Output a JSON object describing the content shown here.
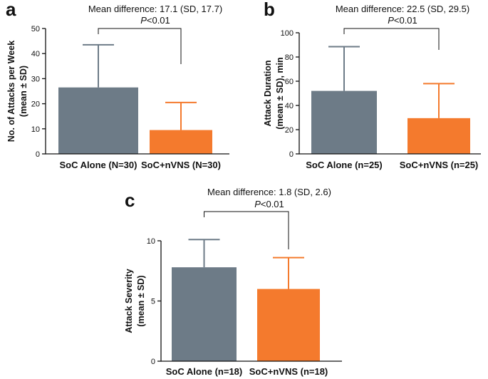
{
  "chart_data": [
    {
      "panel": "a",
      "type": "bar",
      "title": "Mean difference: 17.1 (SD, 17.7)",
      "p_prefix": "P",
      "p_suffix": "<0.01",
      "ylabel": "No. of Attacks per Week",
      "ylabel2": "(mean ± SD)",
      "ylim": [
        0,
        50
      ],
      "yticks": [
        0,
        10,
        20,
        30,
        40,
        50
      ],
      "categories": [
        "SoC Alone (N=30)",
        "SoC+nVNS (N=30)"
      ],
      "values": [
        26.5,
        9.5
      ],
      "errors": [
        17.0,
        11.0
      ],
      "colors": [
        "#6d7b87",
        "#f47a2d"
      ],
      "error_colors": [
        "#6d7b87",
        "#f47a2d"
      ]
    },
    {
      "panel": "b",
      "type": "bar",
      "title": "Mean difference: 22.5 (SD, 29.5)",
      "p_prefix": "P",
      "p_suffix": "<0.01",
      "ylabel": "Attack Duration",
      "ylabel2": "(mean ± SD), min",
      "ylim": [
        0,
        100
      ],
      "yticks": [
        0,
        20,
        40,
        60,
        80,
        100
      ],
      "categories": [
        "SoC Alone (n=25)",
        "SoC+nVNS (n=25)"
      ],
      "values": [
        52,
        29.5
      ],
      "errors": [
        36.5,
        28.5
      ],
      "colors": [
        "#6d7b87",
        "#f47a2d"
      ],
      "error_colors": [
        "#6d7b87",
        "#f47a2d"
      ]
    },
    {
      "panel": "c",
      "type": "bar",
      "title": "Mean difference: 1.8 (SD, 2.6)",
      "p_prefix": "P",
      "p_suffix": "<0.01",
      "ylabel": "Attack Severity",
      "ylabel2": "(mean ± SD)",
      "ylim": [
        0,
        10
      ],
      "yticks": [
        0,
        5,
        10
      ],
      "categories": [
        "SoC Alone (n=18)",
        "SoC+nVNS (n=18)"
      ],
      "values": [
        7.8,
        6.0
      ],
      "errors": [
        2.3,
        2.6
      ],
      "colors": [
        "#6d7b87",
        "#f47a2d"
      ],
      "error_colors": [
        "#6d7b87",
        "#f47a2d"
      ]
    }
  ]
}
